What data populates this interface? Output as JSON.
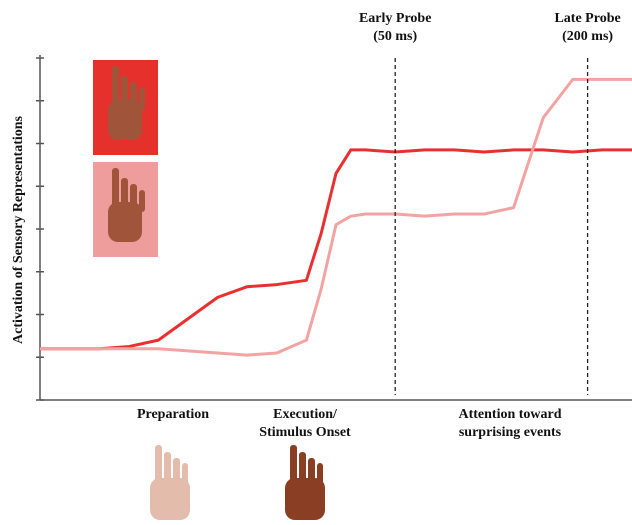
{
  "chart_data": {
    "type": "line",
    "y_label": "Activation of Sensory Representations",
    "x": [
      0,
      5,
      10,
      15,
      20,
      25,
      30,
      35,
      40,
      45,
      47.5,
      50,
      52.5,
      55,
      60,
      65,
      70,
      75,
      80,
      85,
      90,
      95,
      100
    ],
    "xlim": [
      0,
      100
    ],
    "ylim": [
      0,
      8
    ],
    "yticks": [
      0,
      1,
      2,
      3,
      4,
      5,
      6,
      7,
      8
    ],
    "series": [
      {
        "color": "#e83030",
        "values": [
          1.2,
          1.2,
          1.2,
          1.25,
          1.4,
          1.9,
          2.4,
          2.65,
          2.7,
          2.8,
          3.9,
          5.3,
          5.85,
          5.85,
          5.8,
          5.85,
          5.85,
          5.8,
          5.85,
          5.85,
          5.8,
          5.85,
          5.85
        ]
      },
      {
        "color": "#f4a3a3",
        "values": [
          1.2,
          1.2,
          1.2,
          1.2,
          1.2,
          1.15,
          1.1,
          1.05,
          1.1,
          1.4,
          2.6,
          4.1,
          4.3,
          4.35,
          4.35,
          4.3,
          4.35,
          4.35,
          4.5,
          6.6,
          7.5,
          7.5,
          7.5
        ]
      }
    ],
    "probes": [
      {
        "x": 60,
        "lines": [
          "Early Probe",
          "(50 ms)"
        ]
      },
      {
        "x": 92.5,
        "lines": [
          "Late Probe",
          "(200 ms)"
        ]
      }
    ],
    "phases": [
      {
        "lines": [
          "Preparation"
        ]
      },
      {
        "lines": [
          "Execution/",
          "Stimulus Onset"
        ]
      },
      {
        "lines": [
          "Attention toward",
          "surprising events"
        ]
      }
    ]
  }
}
